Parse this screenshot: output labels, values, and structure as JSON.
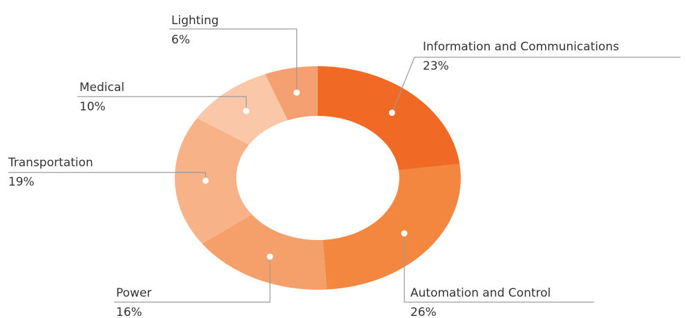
{
  "chart_data": {
    "type": "donut",
    "categories": [
      "Information and Communications",
      "Automation and Control",
      "Power",
      "Transportation",
      "Medical",
      "Lighting"
    ],
    "values": [
      23,
      26,
      16,
      19,
      10,
      6
    ],
    "value_labels": [
      "23%",
      "26%",
      "16%",
      "19%",
      "10%",
      "6%"
    ],
    "colors": [
      "#f06a25",
      "#f3873f",
      "#f5a06a",
      "#f7b287",
      "#fac7a8",
      "#f4a070"
    ]
  }
}
